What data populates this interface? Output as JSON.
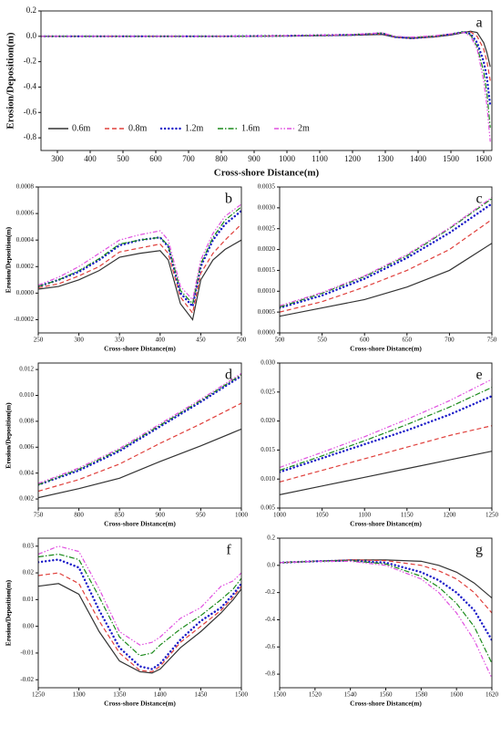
{
  "chart_data": [
    {
      "type": "line",
      "label": "a",
      "x_label": "Cross-shore Distance(m)",
      "y_label": "Erosion/Deposition(m)",
      "legend": "lower left",
      "x": [
        250,
        400,
        600,
        800,
        1000,
        1200,
        1290,
        1330,
        1380,
        1450,
        1500,
        1540,
        1560,
        1580,
        1600,
        1610,
        1620
      ],
      "xlim": [
        250,
        1625
      ],
      "xticks": [
        300,
        400,
        500,
        600,
        700,
        800,
        900,
        1000,
        1100,
        1200,
        1300,
        1400,
        1500,
        1600
      ],
      "ylim": [
        -0.9,
        0.2
      ],
      "yticks": [
        -0.8,
        -0.6,
        -0.4,
        -0.2,
        {
          "value": 0,
          "label": "0.0"
        },
        0.2
      ],
      "series": [
        {
          "name": "0.6m",
          "color": "#333333",
          "line_style": "solid",
          "values": [
            0,
            0,
            0,
            0,
            0.002,
            0.008,
            0.015,
            -0.008,
            -0.017,
            -0.005,
            0.01,
            0.03,
            0.04,
            0.03,
            -0.05,
            -0.13,
            -0.24
          ]
        },
        {
          "name": "0.8m",
          "color": "#e0403c",
          "line_style": "dashed",
          "values": [
            0,
            0,
            0,
            0,
            0.003,
            0.01,
            0.02,
            -0.006,
            -0.016,
            -0.003,
            0.015,
            0.035,
            0.035,
            0,
            -0.1,
            -0.2,
            -0.35
          ]
        },
        {
          "name": "1.2m",
          "color": "#1a1ac8",
          "line_style": "dotted",
          "values": [
            0,
            0,
            0,
            0,
            0.004,
            0.012,
            0.024,
            -0.005,
            -0.015,
            0,
            0.016,
            0.035,
            0.02,
            -0.05,
            -0.2,
            -0.33,
            -0.55
          ]
        },
        {
          "name": "1.6m",
          "color": "#1a8a1a",
          "line_style": "dashdot",
          "values": [
            0,
            0,
            0,
            0,
            0.004,
            0.013,
            0.026,
            -0.002,
            -0.01,
            0.002,
            0.018,
            0.035,
            0.01,
            -0.08,
            -0.28,
            -0.45,
            -0.72
          ]
        },
        {
          "name": "2m",
          "color": "#e050e0",
          "line_style": "dashdotdot",
          "values": [
            0,
            0,
            0,
            0,
            0.005,
            0.014,
            0.028,
            0,
            -0.006,
            0.005,
            0.02,
            0.03,
            0,
            -0.1,
            -0.35,
            -0.55,
            -0.83
          ]
        }
      ]
    },
    {
      "type": "line",
      "label": "b",
      "x_label": "Cross-shore Distance(m)",
      "y_label": "Erosion/Deposition(m)",
      "x": [
        250,
        275,
        300,
        325,
        350,
        375,
        400,
        410,
        425,
        440,
        450,
        465,
        480,
        500
      ],
      "xlim": [
        250,
        500
      ],
      "xticks": [
        250,
        300,
        350,
        400,
        450,
        500
      ],
      "ylim": [
        -0.0003,
        0.0008
      ],
      "yticks": [
        -0.0002,
        {
          "value": 0,
          "label": "0.0000"
        },
        0.0002,
        0.0004,
        0.0006,
        0.0008
      ],
      "series": [
        {
          "name": "0.6m",
          "color": "#333333",
          "line_style": "solid",
          "values": [
            3e-05,
            5e-05,
            0.0001,
            0.00017,
            0.00027,
            0.0003,
            0.00032,
            0.00025,
            -8e-05,
            -0.0002,
            0.0001,
            0.00025,
            0.00033,
            0.0004
          ]
        },
        {
          "name": "0.8m",
          "color": "#e0403c",
          "line_style": "dashed",
          "values": [
            4e-05,
            7e-05,
            0.00013,
            0.0002,
            0.00031,
            0.00034,
            0.00037,
            0.0003,
            -3e-05,
            -0.00015,
            0.00015,
            0.0003,
            0.0004,
            0.00052
          ]
        },
        {
          "name": "1.2m",
          "color": "#1a1ac8",
          "line_style": "dotted",
          "values": [
            5e-05,
            0.0001,
            0.00016,
            0.00025,
            0.00036,
            0.0004,
            0.00042,
            0.00035,
            0,
            -0.0001,
            0.0002,
            0.0004,
            0.00052,
            0.00062
          ]
        },
        {
          "name": "1.6m",
          "color": "#1a8a1a",
          "line_style": "dashdot",
          "values": [
            5e-05,
            0.0001,
            0.00017,
            0.00026,
            0.00037,
            0.0004,
            0.00042,
            0.00036,
            2e-05,
            -8e-05,
            0.00022,
            0.00042,
            0.00055,
            0.00065
          ]
        },
        {
          "name": "2m",
          "color": "#e050e0",
          "line_style": "dashdotdot",
          "values": [
            6e-05,
            0.00012,
            0.0002,
            0.0003,
            0.0004,
            0.00044,
            0.00047,
            0.0004,
            5e-05,
            -5e-05,
            0.00025,
            0.00045,
            0.00058,
            0.00067
          ]
        }
      ]
    },
    {
      "type": "line",
      "label": "c",
      "x_label": "Cross-shore Distance(m)",
      "y_label": "Erosion/Deposition(m)",
      "x": [
        500,
        550,
        600,
        650,
        700,
        750
      ],
      "xlim": [
        500,
        750
      ],
      "xticks": [
        500,
        550,
        600,
        650,
        700,
        750
      ],
      "ylim": [
        0,
        0.0035
      ],
      "yticks": [
        {
          "value": 0,
          "label": "0.0000"
        },
        0.0005,
        {
          "value": 0.001,
          "label": "0.0010"
        },
        0.0015,
        {
          "value": 0.002,
          "label": "0.0020"
        },
        0.0025,
        {
          "value": 0.003,
          "label": "0.0030"
        },
        0.0035
      ],
      "series": [
        {
          "name": "0.6m",
          "color": "#333333",
          "line_style": "solid",
          "values": [
            0.0004,
            0.0006,
            0.0008,
            0.0011,
            0.0015,
            0.00215
          ]
        },
        {
          "name": "0.8m",
          "color": "#e0403c",
          "line_style": "dashed",
          "values": [
            0.0005,
            0.00075,
            0.0011,
            0.0015,
            0.002,
            0.00272
          ]
        },
        {
          "name": "1.2m",
          "color": "#1a1ac8",
          "line_style": "dotted",
          "values": [
            0.0006,
            0.0009,
            0.0013,
            0.0018,
            0.0024,
            0.0031
          ]
        },
        {
          "name": "1.6m",
          "color": "#1a8a1a",
          "line_style": "dashdot",
          "values": [
            0.00062,
            0.00095,
            0.00135,
            0.00185,
            0.0025,
            0.00322
          ]
        },
        {
          "name": "2m",
          "color": "#e050e0",
          "line_style": "dashdotdot",
          "values": [
            0.00065,
            0.00097,
            0.00137,
            0.00188,
            0.00252,
            0.00325
          ]
        }
      ]
    },
    {
      "type": "line",
      "label": "d",
      "x_label": "Cross-shore Distance(m)",
      "y_label": "Erosion/Deposition(m)",
      "x": [
        750,
        800,
        850,
        900,
        950,
        1000
      ],
      "xlim": [
        750,
        1000
      ],
      "xticks": [
        750,
        800,
        850,
        900,
        950,
        1000
      ],
      "ylim": [
        0.0013,
        0.0125
      ],
      "yticks": [
        0.002,
        0.004,
        0.006,
        0.008,
        {
          "value": 0.01,
          "label": "0.010"
        },
        0.012
      ],
      "series": [
        {
          "name": "0.6m",
          "color": "#333333",
          "line_style": "solid",
          "values": [
            0.0021,
            0.0028,
            0.0036,
            0.0049,
            0.0061,
            0.0074
          ]
        },
        {
          "name": "0.8m",
          "color": "#e0403c",
          "line_style": "dashed",
          "values": [
            0.0026,
            0.0035,
            0.0047,
            0.0063,
            0.0078,
            0.0094
          ]
        },
        {
          "name": "1.2m",
          "color": "#1a1ac8",
          "line_style": "dotted",
          "values": [
            0.0031,
            0.0042,
            0.0057,
            0.0076,
            0.0095,
            0.0115
          ]
        },
        {
          "name": "1.6m",
          "color": "#1a8a1a",
          "line_style": "dashdot",
          "values": [
            0.0031,
            0.0043,
            0.0058,
            0.0077,
            0.0096,
            0.0116
          ]
        },
        {
          "name": "2m",
          "color": "#e050e0",
          "line_style": "dashdotdot",
          "values": [
            0.0032,
            0.0044,
            0.0059,
            0.0078,
            0.0097,
            0.0117
          ]
        }
      ]
    },
    {
      "type": "line",
      "label": "e",
      "x_label": "Cross-shore Distance(m)",
      "y_label": "Erosion/Deposition(m)",
      "x": [
        1000,
        1050,
        1100,
        1150,
        1200,
        1250
      ],
      "xlim": [
        1000,
        1250
      ],
      "xticks": [
        1000,
        1050,
        1100,
        1150,
        1200,
        1250
      ],
      "ylim": [
        0.005,
        0.03
      ],
      "yticks": [
        0.005,
        {
          "value": 0.01,
          "label": "0.010"
        },
        0.015,
        {
          "value": 0.02,
          "label": "0.020"
        },
        0.025,
        {
          "value": 0.03,
          "label": "0.030"
        }
      ],
      "series": [
        {
          "name": "0.6m",
          "color": "#333333",
          "line_style": "solid",
          "values": [
            0.0073,
            0.0088,
            0.0103,
            0.0118,
            0.0133,
            0.0148
          ]
        },
        {
          "name": "0.8m",
          "color": "#e0403c",
          "line_style": "dashed",
          "values": [
            0.0095,
            0.0115,
            0.0135,
            0.0155,
            0.0175,
            0.0192
          ]
        },
        {
          "name": "1.2m",
          "color": "#1a1ac8",
          "line_style": "dotted",
          "values": [
            0.0112,
            0.0136,
            0.016,
            0.0184,
            0.0211,
            0.0243
          ]
        },
        {
          "name": "1.6m",
          "color": "#1a8a1a",
          "line_style": "dashdot",
          "values": [
            0.0115,
            0.014,
            0.0166,
            0.0194,
            0.0224,
            0.0258
          ]
        },
        {
          "name": "2m",
          "color": "#e050e0",
          "line_style": "dashdotdot",
          "values": [
            0.012,
            0.0146,
            0.0173,
            0.0203,
            0.0235,
            0.0272
          ]
        }
      ]
    },
    {
      "type": "line",
      "label": "f",
      "x_label": "Cross-shore Distance(m)",
      "y_label": "Erosion/Deposition(m)",
      "x": [
        1250,
        1275,
        1300,
        1325,
        1350,
        1375,
        1390,
        1400,
        1425,
        1450,
        1475,
        1490,
        1500
      ],
      "xlim": [
        1250,
        1500
      ],
      "xticks": [
        1250,
        1300,
        1350,
        1400,
        1450,
        1500
      ],
      "ylim": [
        -0.023,
        0.033
      ],
      "yticks": [
        -0.02,
        -0.01,
        {
          "value": 0,
          "label": "0.00"
        },
        0.01,
        0.02,
        0.03
      ],
      "series": [
        {
          "name": "0.6m",
          "color": "#333333",
          "line_style": "solid",
          "values": [
            0.015,
            0.016,
            0.012,
            -0.002,
            -0.013,
            -0.017,
            -0.0175,
            -0.016,
            -0.008,
            -0.002,
            0.005,
            0.01,
            0.014
          ]
        },
        {
          "name": "0.8m",
          "color": "#e0403c",
          "line_style": "dashed",
          "values": [
            0.019,
            0.02,
            0.016,
            0.002,
            -0.01,
            -0.0165,
            -0.017,
            -0.015,
            -0.006,
            0,
            0.006,
            0.011,
            0.015
          ]
        },
        {
          "name": "1.2m",
          "color": "#1a1ac8",
          "line_style": "dotted",
          "values": [
            0.024,
            0.025,
            0.022,
            0.006,
            -0.008,
            -0.015,
            -0.016,
            -0.014,
            -0.005,
            0.002,
            0.007,
            0.012,
            0.016
          ]
        },
        {
          "name": "1.6m",
          "color": "#1a8a1a",
          "line_style": "dashdot",
          "values": [
            0.026,
            0.027,
            0.025,
            0.011,
            -0.004,
            -0.011,
            -0.01,
            -0.007,
            -0.001,
            0.004,
            0.01,
            0.014,
            0.018
          ]
        },
        {
          "name": "2m",
          "color": "#e050e0",
          "line_style": "dashdotdot",
          "values": [
            0.027,
            0.03,
            0.028,
            0.014,
            -0.002,
            -0.007,
            -0.006,
            -0.004,
            0.003,
            0.007,
            0.015,
            0.017,
            0.02
          ]
        }
      ]
    },
    {
      "type": "line",
      "label": "g",
      "x_label": "Cross-shore Distance(m)",
      "y_label": "Erosion/Deposition(m)",
      "x": [
        1500,
        1520,
        1540,
        1560,
        1580,
        1590,
        1600,
        1610,
        1620
      ],
      "xlim": [
        1500,
        1620
      ],
      "xticks": [
        1500,
        1520,
        1540,
        1560,
        1580,
        1600,
        1620
      ],
      "ylim": [
        -0.9,
        0.2
      ],
      "yticks": [
        -0.8,
        -0.6,
        -0.4,
        -0.2,
        {
          "value": 0,
          "label": "0.0"
        },
        0.2
      ],
      "series": [
        {
          "name": "0.6m",
          "color": "#333333",
          "line_style": "solid",
          "values": [
            0.02,
            0.03,
            0.04,
            0.04,
            0.03,
            0,
            -0.05,
            -0.13,
            -0.24
          ]
        },
        {
          "name": "0.8m",
          "color": "#e0403c",
          "line_style": "dashed",
          "values": [
            0.02,
            0.03,
            0.04,
            0.035,
            0,
            -0.04,
            -0.1,
            -0.2,
            -0.35
          ]
        },
        {
          "name": "1.2m",
          "color": "#1a1ac8",
          "line_style": "dotted",
          "values": [
            0.02,
            0.03,
            0.035,
            0.02,
            -0.05,
            -0.11,
            -0.2,
            -0.33,
            -0.55
          ]
        },
        {
          "name": "1.6m",
          "color": "#1a8a1a",
          "line_style": "dashdot",
          "values": [
            0.02,
            0.03,
            0.035,
            0.01,
            -0.08,
            -0.16,
            -0.28,
            -0.45,
            -0.72
          ]
        },
        {
          "name": "2m",
          "color": "#e050e0",
          "line_style": "dashdotdot",
          "values": [
            0.02,
            0.03,
            0.03,
            0,
            -0.1,
            -0.2,
            -0.35,
            -0.55,
            -0.83
          ]
        }
      ]
    }
  ]
}
